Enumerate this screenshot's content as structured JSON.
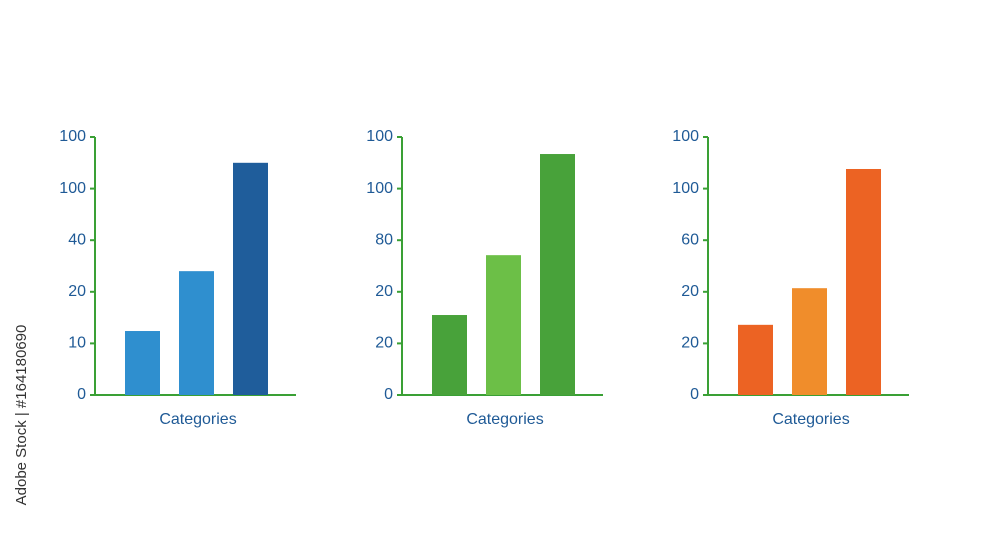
{
  "chart_data": [
    {
      "type": "bar",
      "xlabel": "Categories",
      "categories": [
        null,
        null,
        null
      ],
      "values": [
        1.24,
        2.4,
        4.5
      ],
      "colors": [
        "#2f8fcf",
        "#2f8fcf",
        "#1f5d9b"
      ],
      "axis_color": "#3aa035",
      "ylim": [
        0,
        5
      ],
      "yticks": [
        0,
        {
          "value": 1,
          "label": "10"
        },
        {
          "value": 2,
          "label": "20"
        },
        {
          "value": 3,
          "label": "40"
        },
        {
          "value": 4,
          "label": "100"
        },
        {
          "value": 5,
          "label": "100"
        }
      ]
    },
    {
      "type": "bar",
      "xlabel": "Categories",
      "categories": [
        null,
        null,
        null
      ],
      "values": [
        1.55,
        2.71,
        4.67
      ],
      "colors": [
        "#48a23a",
        "#6cbf47",
        "#48a23a"
      ],
      "axis_color": "#3aa035",
      "ylim": [
        0,
        5
      ],
      "yticks": [
        0,
        {
          "value": 1,
          "label": "20"
        },
        {
          "value": 2,
          "label": "20"
        },
        {
          "value": 3,
          "label": "80"
        },
        {
          "value": 4,
          "label": "100"
        },
        {
          "value": 5,
          "label": "100"
        }
      ]
    },
    {
      "type": "bar",
      "xlabel": "Categories",
      "categories": [
        null,
        null,
        null
      ],
      "values": [
        1.36,
        2.07,
        4.38
      ],
      "colors": [
        "#ec6323",
        "#f08d2b",
        "#ec6323"
      ],
      "axis_color": "#3aa035",
      "ylim": [
        0,
        5
      ],
      "yticks": [
        0,
        {
          "value": 1,
          "label": "20"
        },
        {
          "value": 2,
          "label": "20"
        },
        {
          "value": 3,
          "label": "60"
        },
        {
          "value": 4,
          "label": "100"
        },
        {
          "value": 5,
          "label": "100"
        }
      ]
    }
  ],
  "watermark": "Adobe Stock | #164180690"
}
